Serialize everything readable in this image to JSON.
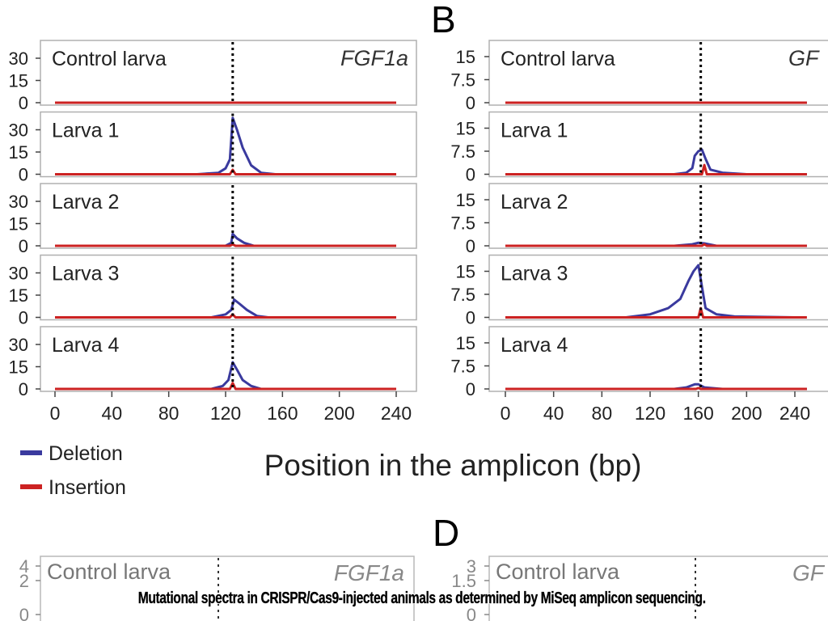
{
  "figure": {
    "panel_letters": [
      "B",
      "D"
    ],
    "x_axis_title": "Position in the amplicon (bp)",
    "legend": [
      {
        "label": "Deletion",
        "color": "#3a3a9e"
      },
      {
        "label": "Insertion",
        "color": "#cc2222"
      }
    ],
    "caption": "Mutational spectra in CRISPR/Cas9-injected animals as determined by MiSeq amplicon sequencing."
  },
  "chart_data": [
    {
      "type": "line",
      "gene_label": "FGF1a",
      "xlim": [
        0,
        240
      ],
      "x_ticks": [
        "0",
        "40",
        "80",
        "120",
        "160",
        "200",
        "240"
      ],
      "ylim": [
        0,
        40
      ],
      "y_ticks": [
        "0",
        "15",
        "30"
      ],
      "cut_site": 125,
      "panels": [
        {
          "label": "Control larva",
          "deletion": [
            [
              0,
              0
            ],
            [
              240,
              0
            ]
          ],
          "insertion": [
            [
              0,
              0
            ],
            [
              240,
              0
            ]
          ]
        },
        {
          "label": "Larva 1",
          "deletion": [
            [
              0,
              0
            ],
            [
              100,
              0
            ],
            [
              115,
              1
            ],
            [
              120,
              4
            ],
            [
              123,
              10
            ],
            [
              125,
              38
            ],
            [
              128,
              30
            ],
            [
              132,
              18
            ],
            [
              138,
              6
            ],
            [
              145,
              1
            ],
            [
              155,
              0
            ],
            [
              240,
              0
            ]
          ],
          "insertion": [
            [
              0,
              0
            ],
            [
              123,
              0
            ],
            [
              125,
              3
            ],
            [
              127,
              0
            ],
            [
              240,
              0
            ]
          ]
        },
        {
          "label": "Larva 2",
          "deletion": [
            [
              0,
              0
            ],
            [
              120,
              0
            ],
            [
              124,
              2
            ],
            [
              125,
              8
            ],
            [
              128,
              5
            ],
            [
              133,
              2
            ],
            [
              140,
              0
            ],
            [
              240,
              0
            ]
          ],
          "insertion": [
            [
              0,
              0
            ],
            [
              123,
              0
            ],
            [
              125,
              1
            ],
            [
              127,
              0
            ],
            [
              240,
              0
            ]
          ]
        },
        {
          "label": "Larva 3",
          "deletion": [
            [
              0,
              0
            ],
            [
              110,
              0
            ],
            [
              120,
              2
            ],
            [
              124,
              5
            ],
            [
              126,
              12
            ],
            [
              130,
              9
            ],
            [
              135,
              5
            ],
            [
              142,
              1
            ],
            [
              150,
              0
            ],
            [
              240,
              0
            ]
          ],
          "insertion": [
            [
              0,
              0
            ],
            [
              123,
              0
            ],
            [
              125,
              2
            ],
            [
              127,
              0
            ],
            [
              240,
              0
            ]
          ]
        },
        {
          "label": "Larva 4",
          "deletion": [
            [
              0,
              0
            ],
            [
              110,
              0
            ],
            [
              118,
              2
            ],
            [
              122,
              6
            ],
            [
              125,
              18
            ],
            [
              128,
              13
            ],
            [
              132,
              6
            ],
            [
              138,
              2
            ],
            [
              145,
              0
            ],
            [
              240,
              0
            ]
          ],
          "insertion": [
            [
              0,
              0
            ],
            [
              123,
              0
            ],
            [
              125,
              4
            ],
            [
              127,
              0
            ],
            [
              240,
              0
            ]
          ]
        }
      ]
    },
    {
      "type": "line",
      "gene_label": "GF",
      "xlim": [
        0,
        240
      ],
      "x_ticks": [
        "0",
        "40",
        "80",
        "120",
        "160",
        "200",
        "240"
      ],
      "ylim": [
        0,
        18
      ],
      "y_ticks": [
        "0",
        "7.5",
        "15"
      ],
      "cut_site": 162,
      "panels": [
        {
          "label": "Control larva",
          "deletion": [
            [
              0,
              0
            ],
            [
              250,
              0
            ]
          ],
          "insertion": [
            [
              0,
              0
            ],
            [
              250,
              0
            ]
          ]
        },
        {
          "label": "Larva 1",
          "deletion": [
            [
              0,
              0
            ],
            [
              140,
              0
            ],
            [
              150,
              0.5
            ],
            [
              155,
              2
            ],
            [
              157,
              6
            ],
            [
              160,
              7.5
            ],
            [
              163,
              8
            ],
            [
              166,
              5
            ],
            [
              170,
              1.5
            ],
            [
              180,
              0.5
            ],
            [
              200,
              0
            ],
            [
              250,
              0
            ]
          ],
          "insertion": [
            [
              0,
              0
            ],
            [
              163,
              0
            ],
            [
              165,
              3
            ],
            [
              167,
              0
            ],
            [
              250,
              0
            ]
          ]
        },
        {
          "label": "Larva 2",
          "deletion": [
            [
              0,
              0
            ],
            [
              140,
              0
            ],
            [
              155,
              0.5
            ],
            [
              160,
              1
            ],
            [
              165,
              0.8
            ],
            [
              175,
              0
            ],
            [
              250,
              0
            ]
          ],
          "insertion": [
            [
              0,
              0
            ],
            [
              163,
              0
            ],
            [
              165,
              0.5
            ],
            [
              167,
              0
            ],
            [
              250,
              0
            ]
          ]
        },
        {
          "label": "Larva 3",
          "deletion": [
            [
              0,
              0
            ],
            [
              100,
              0
            ],
            [
              120,
              1
            ],
            [
              135,
              3
            ],
            [
              145,
              6
            ],
            [
              152,
              12
            ],
            [
              156,
              15
            ],
            [
              160,
              17
            ],
            [
              163,
              10
            ],
            [
              166,
              3
            ],
            [
              175,
              1
            ],
            [
              190,
              0.3
            ],
            [
              240,
              0
            ]
          ],
          "insertion": [
            [
              0,
              0
            ],
            [
              160,
              0
            ],
            [
              162,
              3
            ],
            [
              164,
              0
            ],
            [
              250,
              0
            ]
          ]
        },
        {
          "label": "Larva 4",
          "deletion": [
            [
              0,
              0
            ],
            [
              140,
              0
            ],
            [
              150,
              0.5
            ],
            [
              157,
              1.5
            ],
            [
              160,
              1.5
            ],
            [
              165,
              0.5
            ],
            [
              180,
              0
            ],
            [
              250,
              0
            ]
          ],
          "insertion": [
            [
              0,
              0
            ],
            [
              158,
              0
            ],
            [
              160,
              0.3
            ],
            [
              162,
              0
            ],
            [
              250,
              0
            ]
          ]
        }
      ]
    },
    {
      "type": "line",
      "gene_label": "FGF1a",
      "y_ticks": [
        "0",
        "2",
        "4"
      ],
      "panels": [
        {
          "label": "Control larva"
        }
      ]
    },
    {
      "type": "line",
      "gene_label": "GF",
      "y_ticks": [
        "0",
        "1.5",
        "3"
      ],
      "panels": [
        {
          "label": "Control larva"
        }
      ]
    }
  ]
}
